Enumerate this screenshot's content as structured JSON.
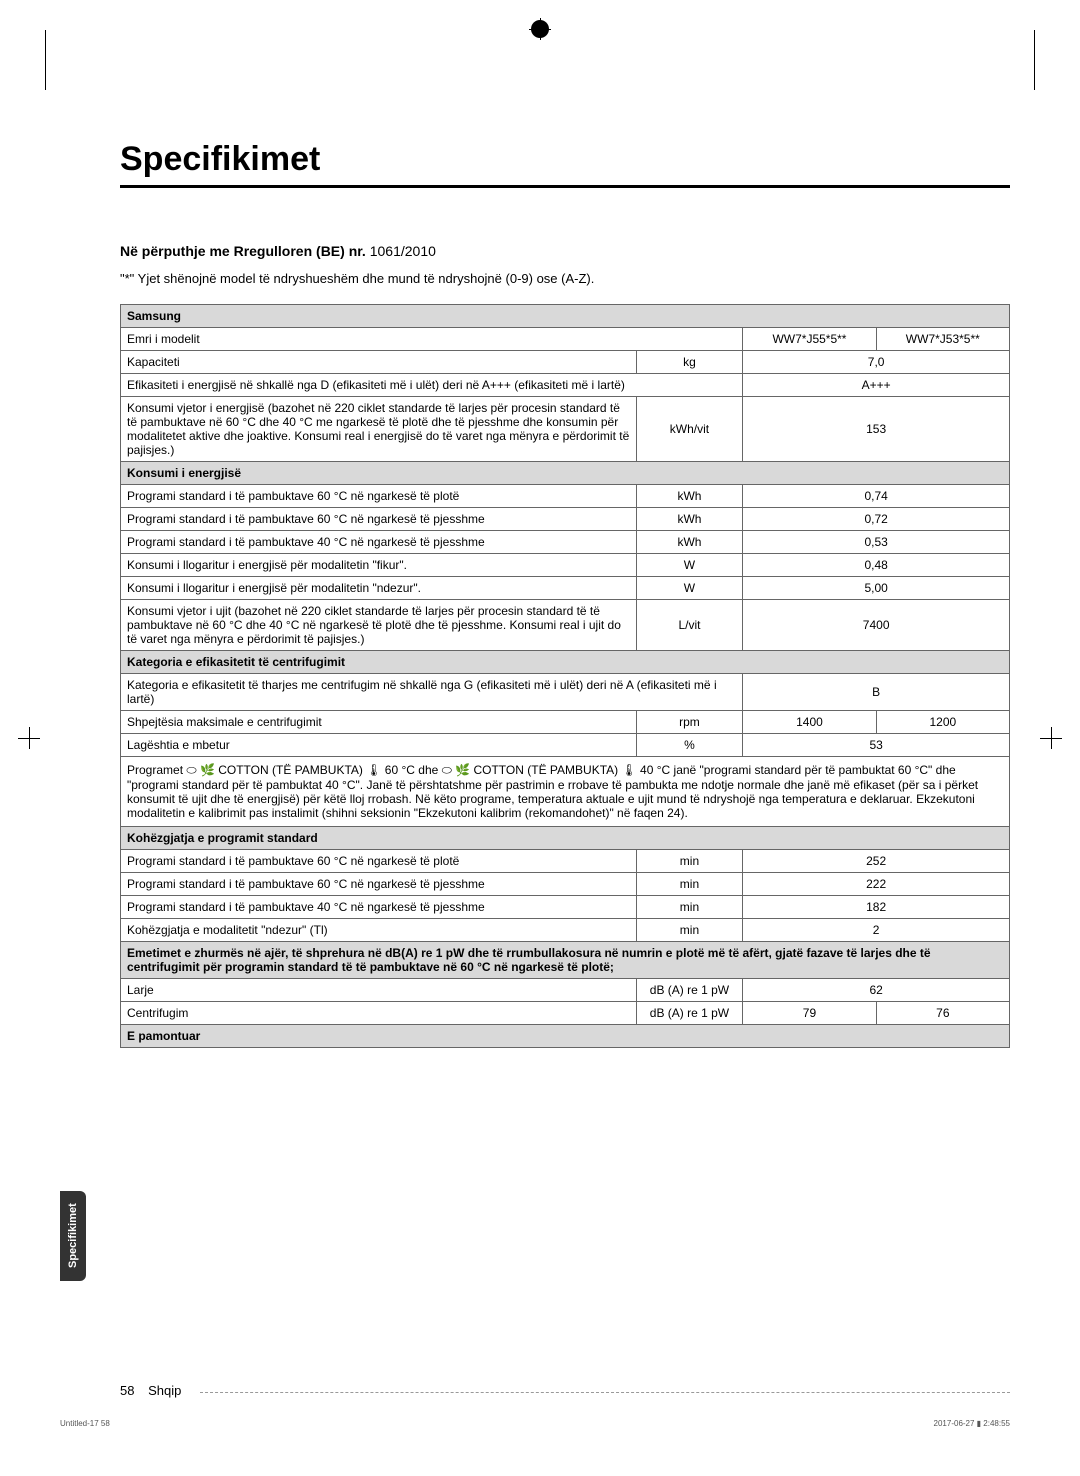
{
  "page_title": "Specifikimet",
  "regulation_label": "Në përputhje me Rregulloren (BE) nr.",
  "regulation_number": " 1061/2010",
  "note_text": "\"*\" Yjet shënojnë model të ndryshueshëm dhe mund të ndryshojnë (0-9) ose (A-Z).",
  "brand": "Samsung",
  "model_row": {
    "label": "Emri i modelit",
    "model1": "WW7*J55*5**",
    "model2": "WW7*J53*5**"
  },
  "capacity_row": {
    "label": "Kapaciteti",
    "unit": "kg",
    "value": "7,0"
  },
  "efficiency_row": {
    "label": "Efikasiteti i energjisë në shkallë nga D (efikasiteti më i ulët) deri në A+++ (efikasiteti më i lartë)",
    "value": "A+++"
  },
  "annual_energy_row": {
    "label": "Konsumi vjetor i energjisë (bazohet në 220 ciklet standarde të larjes për procesin standard të të pambuktave në 60 °C dhe 40 °C me ngarkesë të plotë dhe të pjesshme dhe konsumin për modalitetet aktive dhe joaktive. Konsumi real i energjisë do të varet nga mënyra e përdorimit të pajisjes.)",
    "unit": "kWh/vit",
    "value": "153"
  },
  "energy_section": "Konsumi i energjisë",
  "energy_rows": [
    {
      "label": "Programi standard i të pambuktave 60 °C në ngarkesë të plotë",
      "unit": "kWh",
      "value": "0,74"
    },
    {
      "label": "Programi standard i të pambuktave 60 °C në ngarkesë të pjesshme",
      "unit": "kWh",
      "value": "0,72"
    },
    {
      "label": "Programi standard i të pambuktave 40 °C në ngarkesë të pjesshme",
      "unit": "kWh",
      "value": "0,53"
    },
    {
      "label": "Konsumi i llogaritur i energjisë për modalitetin \"fikur\".",
      "unit": "W",
      "value": "0,48"
    },
    {
      "label": "Konsumi i llogaritur i energjisë për modalitetin \"ndezur\".",
      "unit": "W",
      "value": "5,00"
    }
  ],
  "annual_water_row": {
    "label": "Konsumi vjetor i ujit (bazohet në 220 ciklet standarde të larjes për procesin standard të të pambuktave në 60 °C dhe 40 °C në ngarkesë të plotë dhe të pjesshme. Konsumi real i ujit do të varet nga mënyra e përdorimit të pajisjes.)",
    "unit": "L/vit",
    "value": "7400"
  },
  "spin_section": "Kategoria e efikasitetit të centrifugimit",
  "spin_class_row": {
    "label": "Kategoria e efikasitetit të tharjes me centrifugim në shkallë nga G (efikasiteti më i ulët) deri në A (efikasiteti më i lartë)",
    "value": "B"
  },
  "max_spin_row": {
    "label": "Shpejtësia maksimale e centrifugimit",
    "unit": "rpm",
    "v1": "1400",
    "v2": "1200"
  },
  "moisture_row": {
    "label": "Lagështia e mbetur",
    "unit": "%",
    "value": "53"
  },
  "long_desc": "Programet ⬭ 🌿 COTTON (TË PAMBUKTA) 🌡 60 °C dhe ⬭ 🌿 COTTON (TË PAMBUKTA) 🌡 40 °C janë \"programi standard për të pambuktat 60 °C\" dhe \"programi standard për të pambuktat 40 °C\". Janë të përshtatshme për pastrimin e rrobave të pambukta me ndotje normale dhe janë më efikaset (për sa i përket konsumit të ujit dhe të energjisë) për këtë lloj rrobash. Në këto programe, temperatura aktuale e ujit mund të ndryshojë nga temperatura e deklaruar. Ekzekutoni modalitetin e kalibrimit pas instalimit (shihni seksionin \"Ekzekutoni kalibrim (rekomandohet)\" në faqen 24).",
  "duration_section": "Kohëzgjatja e programit standard",
  "duration_rows": [
    {
      "label": "Programi standard i të pambuktave 60 °C në ngarkesë të plotë",
      "unit": "min",
      "value": "252"
    },
    {
      "label": "Programi standard i të pambuktave 60 °C në ngarkesë të pjesshme",
      "unit": "min",
      "value": "222"
    },
    {
      "label": "Programi standard i të pambuktave 40 °C në ngarkesë të pjesshme",
      "unit": "min",
      "value": "182"
    },
    {
      "label": "Kohëzgjatja e modalitetit \"ndezur\" (Tl)",
      "unit": "min",
      "value": "2"
    }
  ],
  "noise_header": "Emetimet e zhurmës në ajër, të shprehura në dB(A) re 1 pW dhe të rrumbullakosura në numrin e plotë më të afërt, gjatë fazave të larjes dhe të centrifugimit për programin standard të të pambuktave në 60 °C në ngarkesë të plotë;",
  "noise_rows": [
    {
      "label": "Larje",
      "unit": "dB (A) re 1 pW",
      "value": "62",
      "split": false
    },
    {
      "label": "Centrifugim",
      "unit": "dB (A) re 1 pW",
      "v1": "79",
      "v2": "76",
      "split": true
    }
  ],
  "unmounted": "E pamontuar",
  "side_tab": "Specifikimet",
  "page_number": "58",
  "page_lang": "Shqip",
  "print_left": "Untitled-17   58",
  "print_right": "2017-06-27   ▮ 2:48:55",
  "colors": {
    "header_bg": "#d9d9d9",
    "border": "#666666",
    "text": "#000000",
    "side_tab_bg": "#333333"
  }
}
